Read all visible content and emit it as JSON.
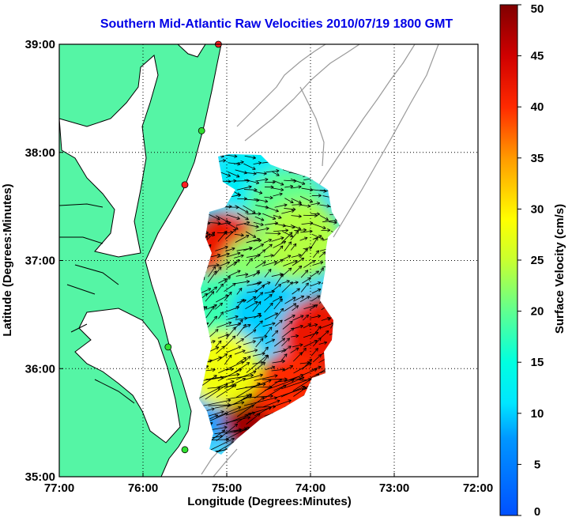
{
  "title": "Southern Mid-Atlantic Raw Velocities 2010/07/19 1800 GMT",
  "map": {
    "x_label": "Longitude (Degrees:Minutes)",
    "y_label": "Latitude (Degrees:Minutes)",
    "x_ticks": [
      "77:00",
      "76:00",
      "75:00",
      "74:00",
      "73:00",
      "72:00"
    ],
    "y_ticks": [
      "39:00",
      "38:00",
      "37:00",
      "36:00",
      "35:00"
    ],
    "lon_range": [
      -77,
      -72
    ],
    "lat_range": [
      35,
      39
    ],
    "colors": {
      "land": "#55f5a5",
      "coast": "#000000",
      "bathymetry": "#9a9a9a",
      "vector": "#000000"
    }
  },
  "colorbar": {
    "label": "Surface Velocity (cm/s)",
    "ticks": [
      "50",
      "45",
      "40",
      "35",
      "30",
      "25",
      "20",
      "15",
      "10",
      "5",
      "0"
    ],
    "range": [
      0,
      50
    ],
    "colormap": "jet"
  },
  "chart_data": {
    "type": "heatmap",
    "title": "Southern Mid-Atlantic Raw Velocities 2010/07/19 1800 GMT",
    "xlabel": "Longitude (Degrees:Minutes)",
    "ylabel": "Latitude (Degrees:Minutes)",
    "xlim": [
      -77,
      -72
    ],
    "ylim": [
      35,
      39
    ],
    "clim": [
      0,
      50
    ],
    "units": "cm/s",
    "grid": true,
    "sites": [
      {
        "lon": -75.1,
        "lat": 39.0,
        "status": "red"
      },
      {
        "lon": -75.3,
        "lat": 38.2,
        "status": "green"
      },
      {
        "lon": -75.5,
        "lat": 37.7,
        "status": "red"
      },
      {
        "lon": -75.7,
        "lat": 36.2,
        "status": "green"
      },
      {
        "lon": -75.5,
        "lat": 35.25,
        "status": "green"
      }
    ],
    "speed_regions": [
      {
        "lon": -74.95,
        "lat": 37.1,
        "speed": 42
      },
      {
        "lon": -74.7,
        "lat": 37.75,
        "speed": 12
      },
      {
        "lon": -74.3,
        "lat": 37.5,
        "speed": 20
      },
      {
        "lon": -74.6,
        "lat": 36.9,
        "speed": 22
      },
      {
        "lon": -74.1,
        "lat": 37.2,
        "speed": 24
      },
      {
        "lon": -75.1,
        "lat": 36.55,
        "speed": 18
      },
      {
        "lon": -74.5,
        "lat": 36.5,
        "speed": 10
      },
      {
        "lon": -73.9,
        "lat": 36.3,
        "speed": 42
      },
      {
        "lon": -75.2,
        "lat": 35.7,
        "speed": 8
      },
      {
        "lon": -74.6,
        "lat": 35.55,
        "speed": 48
      },
      {
        "lon": -74.2,
        "lat": 35.8,
        "speed": 40
      },
      {
        "lon": -75.05,
        "lat": 36.0,
        "speed": 28
      }
    ]
  }
}
